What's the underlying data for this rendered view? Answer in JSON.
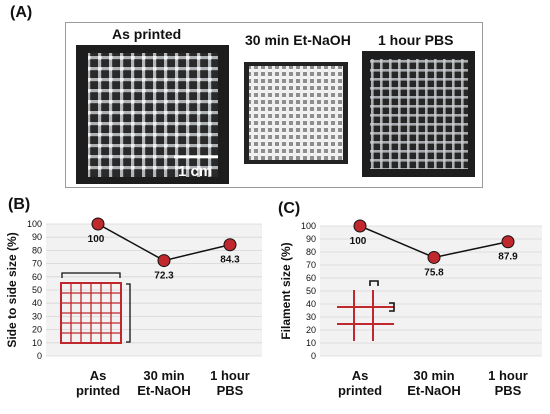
{
  "panel_a": {
    "label": "(A)",
    "photos": [
      {
        "label": "As printed"
      },
      {
        "label": "30 min Et-NaOH"
      },
      {
        "label": "1 hour PBS"
      }
    ],
    "scale_bar": "1 cm"
  },
  "chart_data": [
    {
      "panel_label": "(B)",
      "type": "line",
      "categories": [
        [
          "As",
          "printed"
        ],
        [
          "30 min",
          "Et-NaOH"
        ],
        [
          "1 hour",
          "PBS"
        ]
      ],
      "values": [
        100,
        72.3,
        84.3
      ],
      "data_labels": [
        "100",
        "72.3",
        "84.3"
      ],
      "ylabel": "Side to side size (%)",
      "ylim": [
        0,
        100
      ],
      "yticks": [
        0,
        10,
        20,
        30,
        40,
        50,
        60,
        70,
        80,
        90,
        100
      ],
      "grid": true,
      "marker_color": "#c0282d",
      "line_color": "#111111"
    },
    {
      "panel_label": "(C)",
      "type": "line",
      "categories": [
        [
          "As",
          "printed"
        ],
        [
          "30 min",
          "Et-NaOH"
        ],
        [
          "1 hour",
          "PBS"
        ]
      ],
      "values": [
        100,
        75.8,
        87.9
      ],
      "data_labels": [
        "100",
        "75.8",
        "87.9"
      ],
      "ylabel": "Filament size (%)",
      "ylim": [
        0,
        100
      ],
      "yticks": [
        0,
        10,
        20,
        30,
        40,
        50,
        60,
        70,
        80,
        90,
        100
      ],
      "grid": true,
      "marker_color": "#c0282d",
      "line_color": "#111111"
    }
  ],
  "colors": {
    "accent_red": "#c0282d",
    "grid_bg": "#f2f2f2",
    "photo_dark": "#1e1e1e"
  }
}
